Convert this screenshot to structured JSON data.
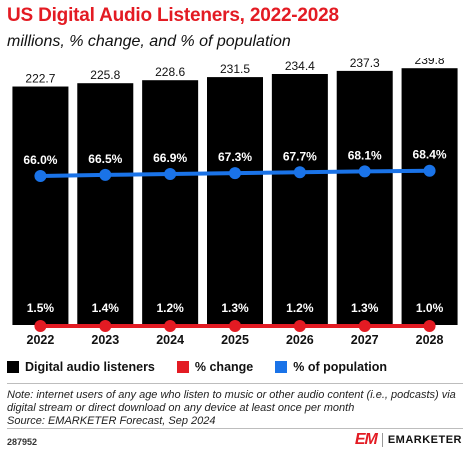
{
  "title": "US Digital Audio Listeners, 2022-2028",
  "subtitle": "millions, % change, and % of population",
  "chart_data": {
    "type": "bar",
    "categories": [
      "2022",
      "2023",
      "2024",
      "2025",
      "2026",
      "2027",
      "2028"
    ],
    "series": [
      {
        "name": "Digital audio listeners",
        "type": "bar",
        "color": "#000000",
        "values": [
          222.7,
          225.8,
          228.6,
          231.5,
          234.4,
          237.3,
          239.8
        ],
        "labels": [
          "222.7",
          "225.8",
          "228.6",
          "231.5",
          "234.4",
          "237.3",
          "239.8"
        ]
      },
      {
        "name": "% change",
        "type": "line",
        "color": "#e31b23",
        "values": [
          1.5,
          1.4,
          1.2,
          1.3,
          1.2,
          1.3,
          1.0
        ],
        "labels": [
          "1.5%",
          "1.4%",
          "1.2%",
          "1.3%",
          "1.2%",
          "1.3%",
          "1.0%"
        ]
      },
      {
        "name": "% of population",
        "type": "line",
        "color": "#1a73e8",
        "values": [
          66.0,
          66.5,
          66.9,
          67.3,
          67.7,
          68.1,
          68.4
        ],
        "labels": [
          "66.0%",
          "66.5%",
          "66.9%",
          "67.3%",
          "67.7%",
          "68.1%",
          "68.4%"
        ]
      }
    ],
    "xlabel": "",
    "ylabel": "",
    "ylim": [
      0,
      240
    ],
    "grid": false,
    "legend_position": "bottom"
  },
  "legend": [
    {
      "label": "Digital audio listeners",
      "color": "#000000"
    },
    {
      "label": "% change",
      "color": "#e31b23"
    },
    {
      "label": "% of population",
      "color": "#1a73e8"
    }
  ],
  "note": "Note: internet users of any age who listen to music or other audio content (i.e., podcasts) via digital stream or direct download on any device at least once per month",
  "source": "Source: EMARKETER Forecast, Sep 2024",
  "chart_id": "287952",
  "brand": {
    "mark": "EM",
    "name": "EMARKETER"
  }
}
